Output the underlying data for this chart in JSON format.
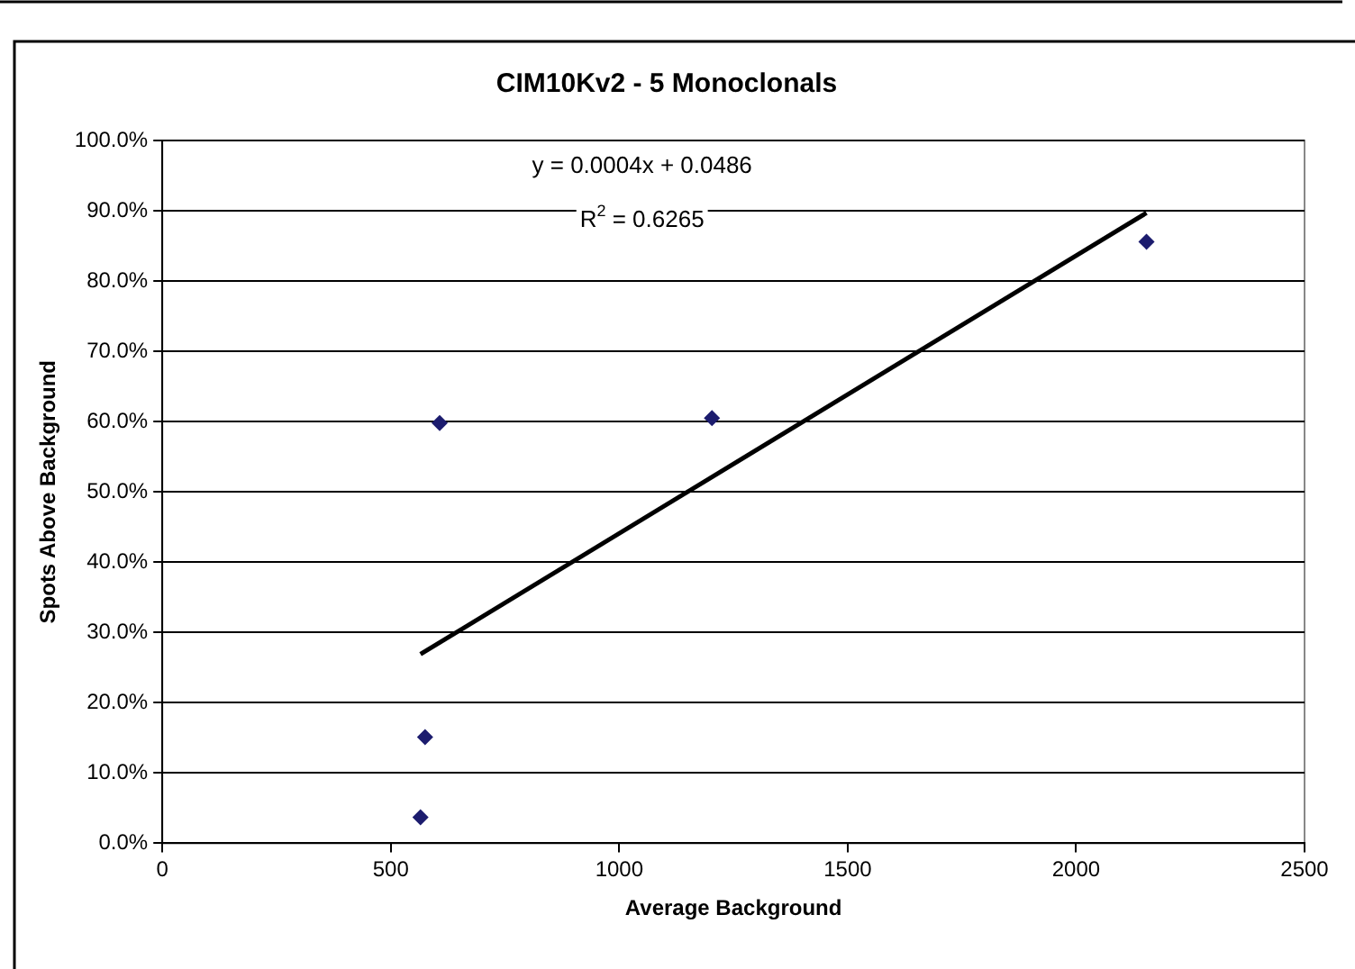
{
  "chart_data": {
    "type": "scatter",
    "title": "CIM10Kv2 - 5 Monoclonals",
    "xlabel": "Average Background",
    "ylabel": "Spots Above Background",
    "annotations": [
      "y = 0.0004x + 0.0486",
      "R$^{2}$ = 0.6265"
    ],
    "series": [
      {
        "color": "#1c1c6e",
        "marker": "diamond",
        "x": [
          565,
          575,
          607,
          1203,
          2154
        ],
        "values": [
          3.7,
          15.1,
          59.8,
          60.5,
          85.6
        ]
      },
      {
        "type": "line",
        "color": "#000000",
        "marker": "none",
        "line_style": "solid",
        "x": [
          565,
          2154
        ],
        "values": [
          26.9,
          89.7
        ]
      }
    ],
    "xlim": [
      0,
      2500
    ],
    "xticks": [
      0,
      500,
      1000,
      1500,
      2000,
      2500
    ],
    "ylim": [
      0,
      100
    ],
    "yticks": [
      {
        "value": 0,
        "label": "0.0%"
      },
      {
        "value": 10,
        "label": "10.0%"
      },
      {
        "value": 20,
        "label": "20.0%"
      },
      {
        "value": 30,
        "label": "30.0%"
      },
      {
        "value": 40,
        "label": "40.0%"
      },
      {
        "value": 50,
        "label": "50.0%"
      },
      {
        "value": 60,
        "label": "60.0%"
      },
      {
        "value": 70,
        "label": "70.0%"
      },
      {
        "value": 80,
        "label": "80.0%"
      },
      {
        "value": 90,
        "label": "90.0%"
      },
      {
        "value": 100,
        "label": "100.0%"
      }
    ],
    "grid": "y",
    "legend": false
  }
}
